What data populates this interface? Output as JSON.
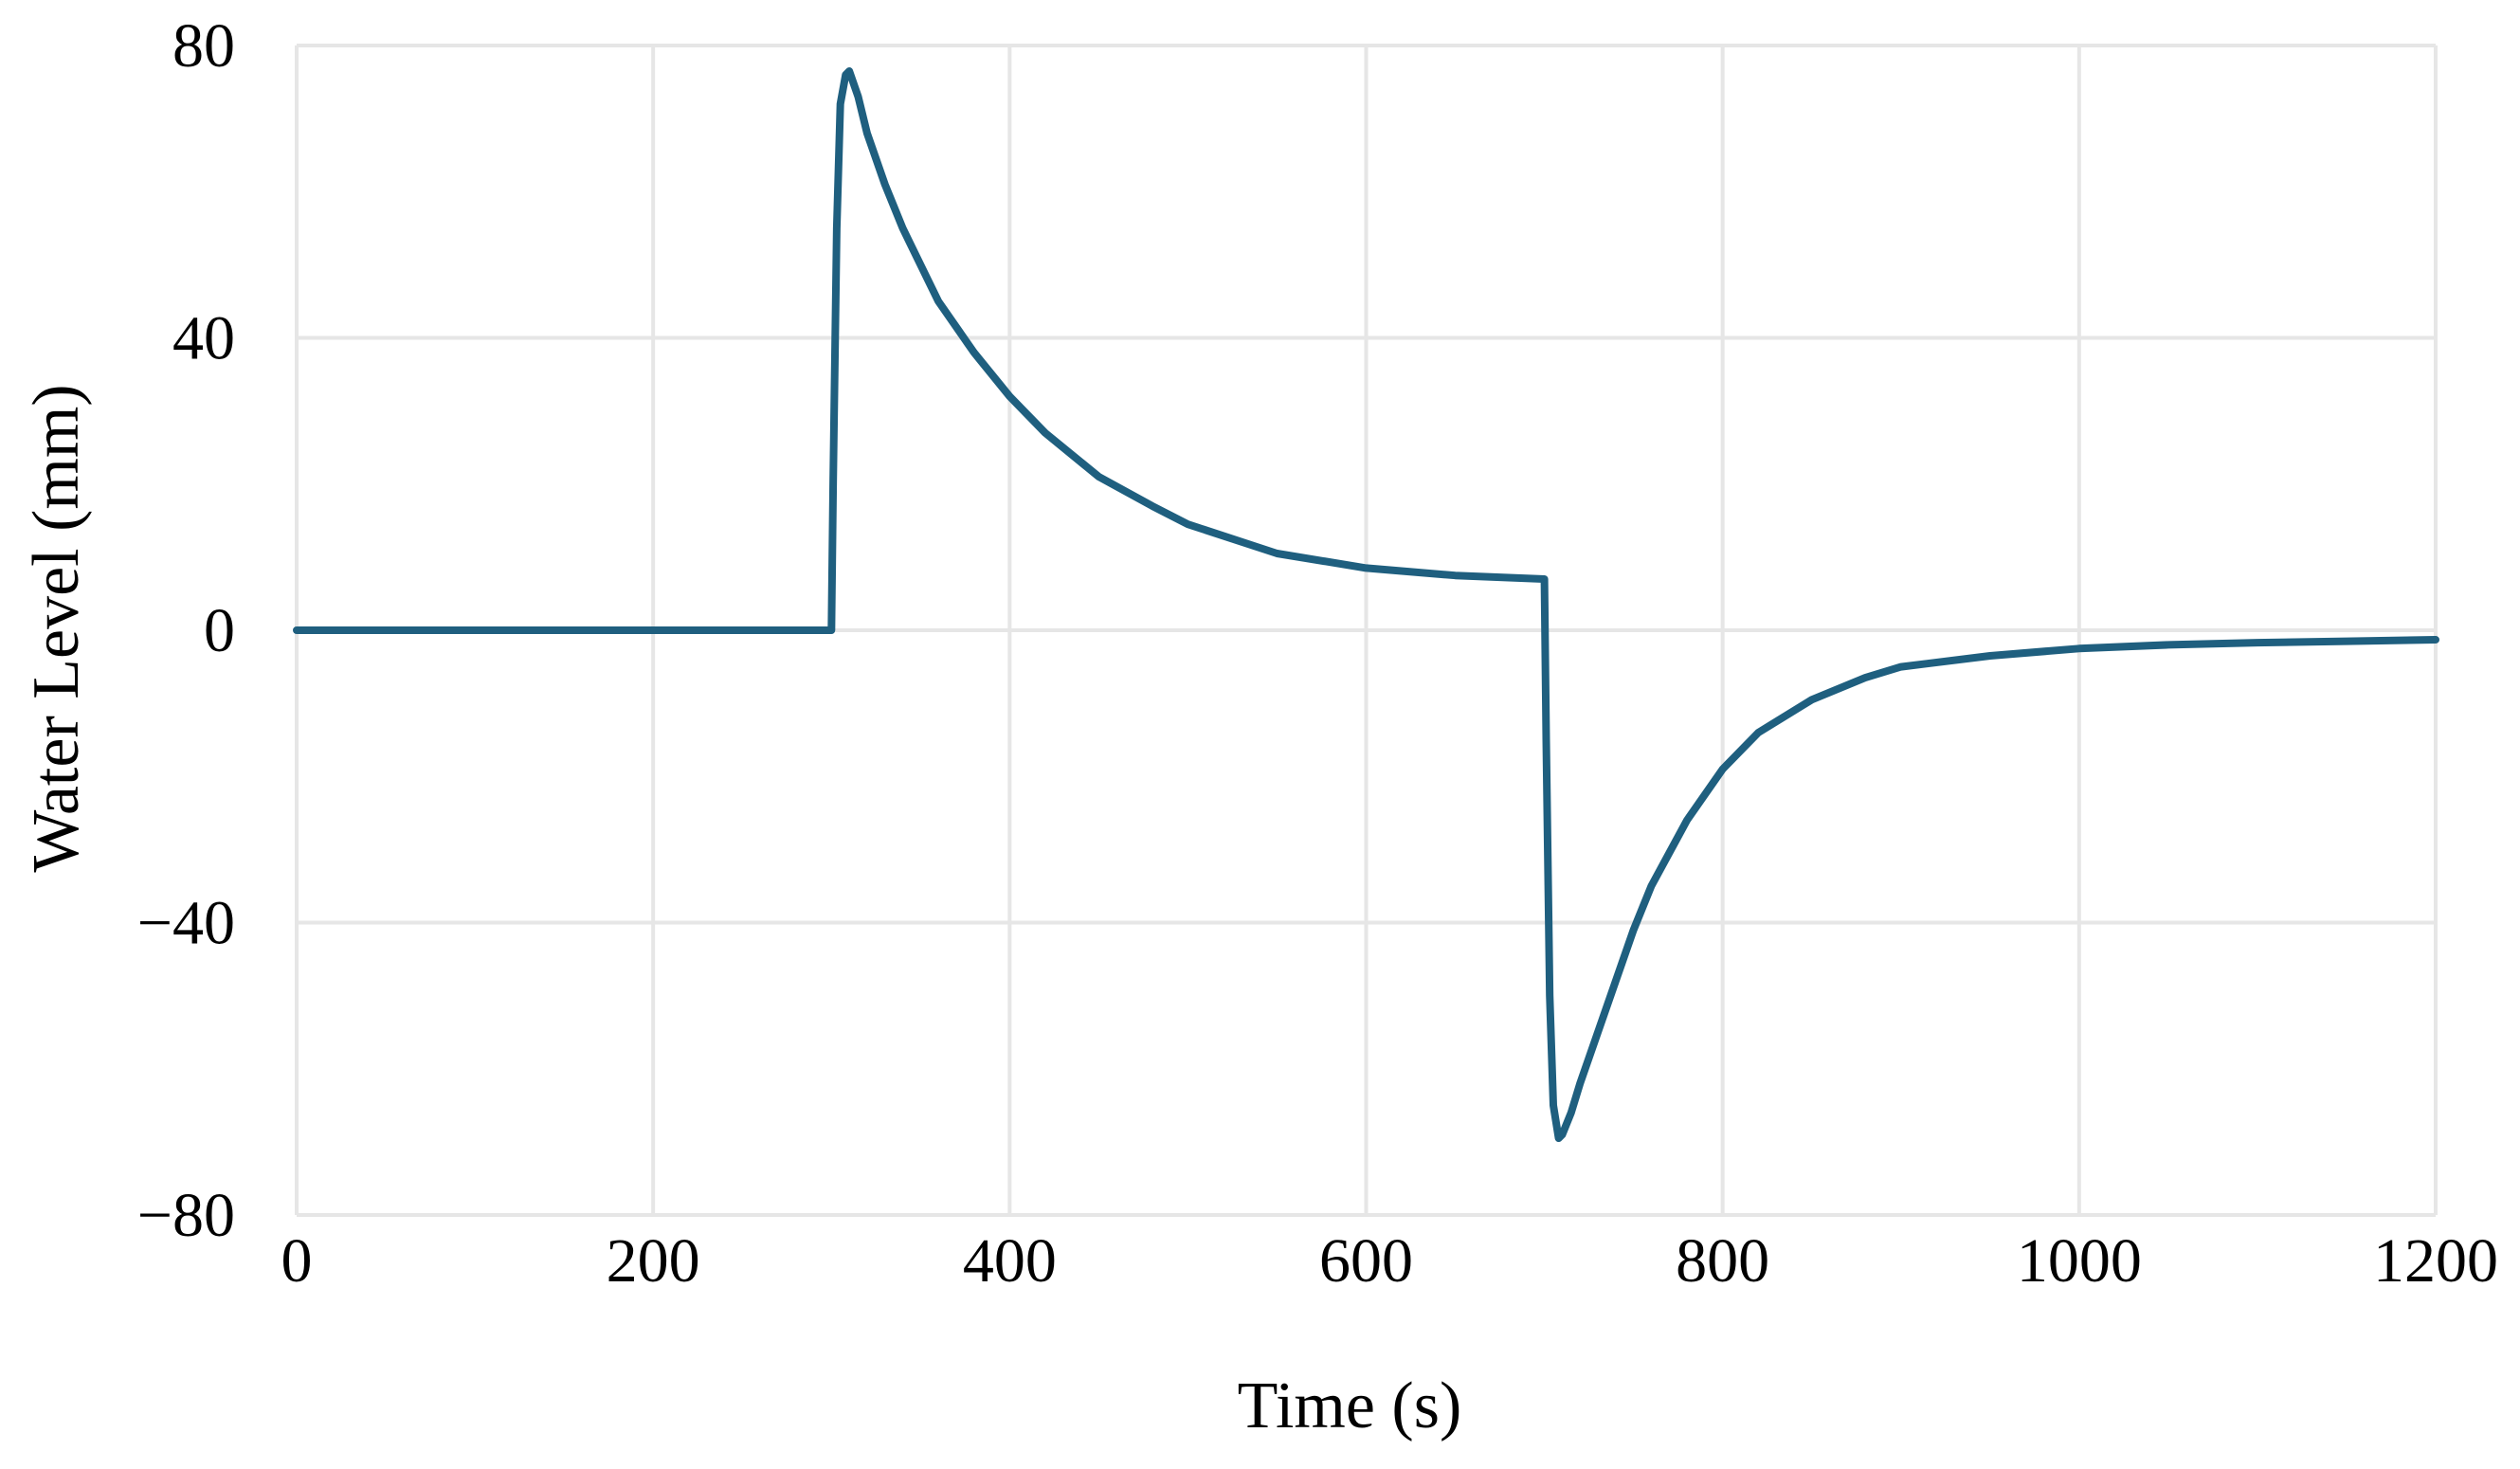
{
  "chart_data": {
    "type": "line",
    "title": "",
    "xlabel": "Time (s)",
    "ylabel": "Water Level (mm)",
    "xlim": [
      0,
      1200
    ],
    "ylim": [
      -80,
      80
    ],
    "x_ticks": [
      0,
      200,
      400,
      600,
      800,
      1000,
      1200
    ],
    "y_ticks": [
      -80,
      -40,
      0,
      40,
      80
    ],
    "x_tick_labels": [
      "0",
      "200",
      "400",
      "600",
      "800",
      "1000",
      "1200"
    ],
    "y_tick_labels": [
      "−80",
      "−40",
      "0",
      "40",
      "80"
    ],
    "grid": true,
    "legend": "none",
    "colors": {
      "series": "#1f5f7f",
      "grid": "#e6e6e6"
    },
    "series": [
      {
        "x": [
          0,
          100,
          200,
          300,
          301,
          303,
          305,
          308,
          310,
          315,
          320,
          330,
          340,
          350,
          360,
          380,
          400,
          420,
          450,
          480,
          500,
          550,
          600,
          650,
          700,
          701,
          703,
          705,
          708,
          710,
          715,
          720,
          730,
          740,
          750,
          760,
          780,
          800,
          820,
          850,
          880,
          900,
          950,
          1000,
          1050,
          1100,
          1150,
          1200
        ],
        "values": [
          0,
          0,
          0,
          0,
          20,
          55,
          72,
          76,
          76.5,
          73,
          68,
          61,
          55,
          50,
          45,
          38,
          32,
          27,
          21,
          17,
          14.5,
          10.5,
          8.5,
          7.5,
          7,
          -15,
          -50,
          -65,
          -69.5,
          -69,
          -66,
          -62,
          -55,
          -48,
          -41,
          -35,
          -26,
          -19,
          -14,
          -9.5,
          -6.5,
          -5,
          -3.5,
          -2.5,
          -2,
          -1.7,
          -1.5,
          -1.3
        ]
      }
    ]
  }
}
